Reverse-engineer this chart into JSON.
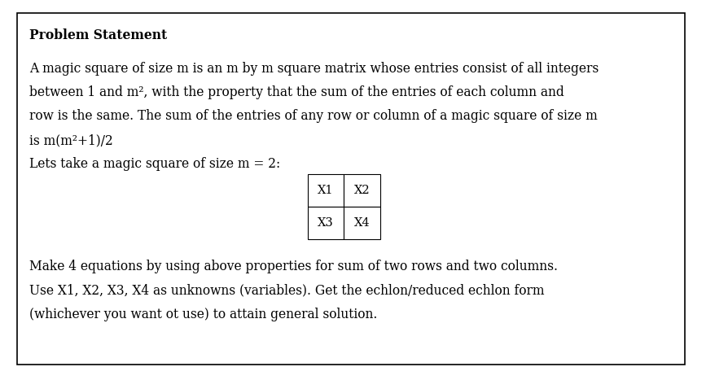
{
  "title": "Problem Statement",
  "bg_color": "#ffffff",
  "border_color": "#000000",
  "text_color": "#000000",
  "fig_width": 8.94,
  "fig_height": 4.67,
  "dpi": 100,
  "paragraph1_lines": [
    "A magic square of size m is an m by m square matrix whose entries consist of all integers",
    "between 1 and m², with the property that the sum of the entries of each column and",
    "row is the same. The sum of the entries of any row or column of a magic square of size m",
    "is m(m²+1)/2"
  ],
  "paragraph2": "Lets take a magic square of size m = 2:",
  "matrix_cells": [
    [
      "X1",
      "X2"
    ],
    [
      "X3",
      "X4"
    ]
  ],
  "paragraph3_lines": [
    "Make 4 equations by using above properties for sum of two rows and two columns.",
    "Use X1, X2, X3, X4 as unknowns (variables). Get the echlon/reduced echlon form",
    "(whichever you want ot use) to attain general solution."
  ],
  "main_font_size": 11.2,
  "title_font_size": 11.2,
  "matrix_font_size": 10.5,
  "font_family": "DejaVu Serif"
}
